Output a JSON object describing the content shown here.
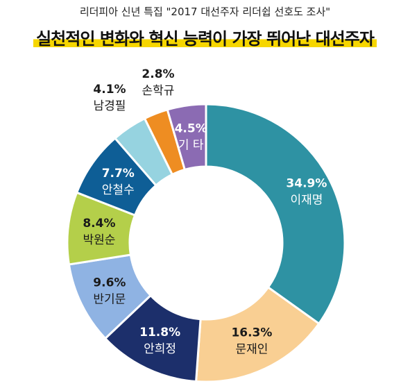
{
  "caption": "리더피아 신년 특집 \"2017 대선주자 리더쉽 선호도 조사\"",
  "chart_data": {
    "type": "pie",
    "title": "실천적인 변화와 혁신 능력이 가장 뛰어난 대선주자",
    "slices": [
      {
        "name": "이재명",
        "value": 34.9,
        "label": "34.9%",
        "color": "#2e92a3",
        "text": "#ffffff",
        "inside": true
      },
      {
        "name": "문재인",
        "value": 16.3,
        "label": "16.3%",
        "color": "#f9cf93",
        "text": "#1a1a1a",
        "inside": true
      },
      {
        "name": "안희정",
        "value": 11.8,
        "label": "11.8%",
        "color": "#1c2f6b",
        "text": "#ffffff",
        "inside": true
      },
      {
        "name": "반기문",
        "value": 9.6,
        "label": "9.6%",
        "color": "#8fb3e3",
        "text": "#1a1a1a",
        "inside": true
      },
      {
        "name": "박원순",
        "value": 8.4,
        "label": "8.4%",
        "color": "#b4cf4a",
        "text": "#1a1a1a",
        "inside": true
      },
      {
        "name": "안철수",
        "value": 7.7,
        "label": "7.7%",
        "color": "#0e5e96",
        "text": "#ffffff",
        "inside": true
      },
      {
        "name": "남경필",
        "value": 4.1,
        "label": "4.1%",
        "color": "#96d3e0",
        "text": "#1a1a1a",
        "inside": false
      },
      {
        "name": "손학규",
        "value": 2.8,
        "label": "2.8%",
        "color": "#ee8d22",
        "text": "#1a1a1a",
        "inside": false
      },
      {
        "name": "기 타",
        "value": 4.5,
        "label": "4.5%",
        "color": "#8b6bb3",
        "text": "#ffffff",
        "inside": true
      }
    ]
  }
}
